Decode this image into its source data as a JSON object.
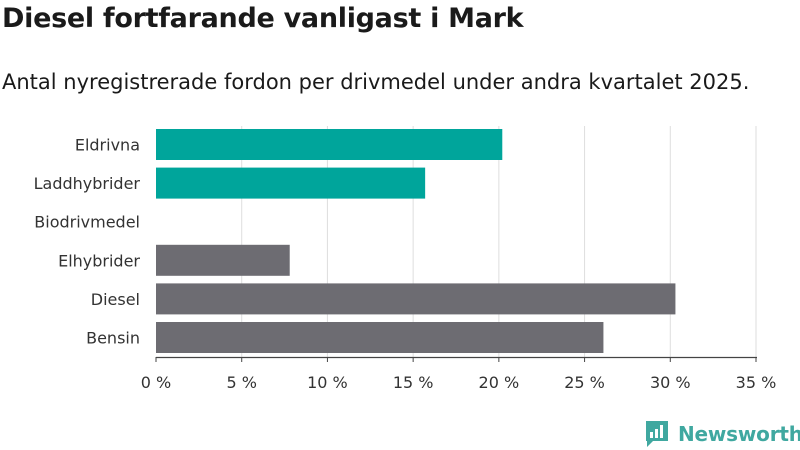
{
  "title": "Diesel fortfarande vanligast i Mark",
  "subtitle": "Antal nyregistrerade fordon per drivmedel under andra kvartalet 2025.",
  "logo": {
    "text": "Newsworthy",
    "icon": "newsworthy-logo-icon",
    "color": "#40a8a0"
  },
  "chart_data": {
    "type": "bar",
    "orientation": "horizontal",
    "categories": [
      "Eldrivna",
      "Laddhybrider",
      "Biodrivmedel",
      "Elhybrider",
      "Diesel",
      "Bensin"
    ],
    "values": [
      20.2,
      15.7,
      0,
      7.8,
      30.3,
      26.1
    ],
    "bar_colors": [
      "#00a59b",
      "#00a59b",
      "#00a59b",
      "#6d6c72",
      "#6d6c72",
      "#6d6c72"
    ],
    "xlim": [
      0,
      35
    ],
    "xticks": [
      0,
      5,
      10,
      15,
      20,
      25,
      30,
      35
    ],
    "xtick_labels": [
      "0 %",
      "5 %",
      "10 %",
      "15 %",
      "20 %",
      "25 %",
      "30 %",
      "35 %"
    ],
    "grid": true,
    "xlabel": "",
    "ylabel": ""
  }
}
